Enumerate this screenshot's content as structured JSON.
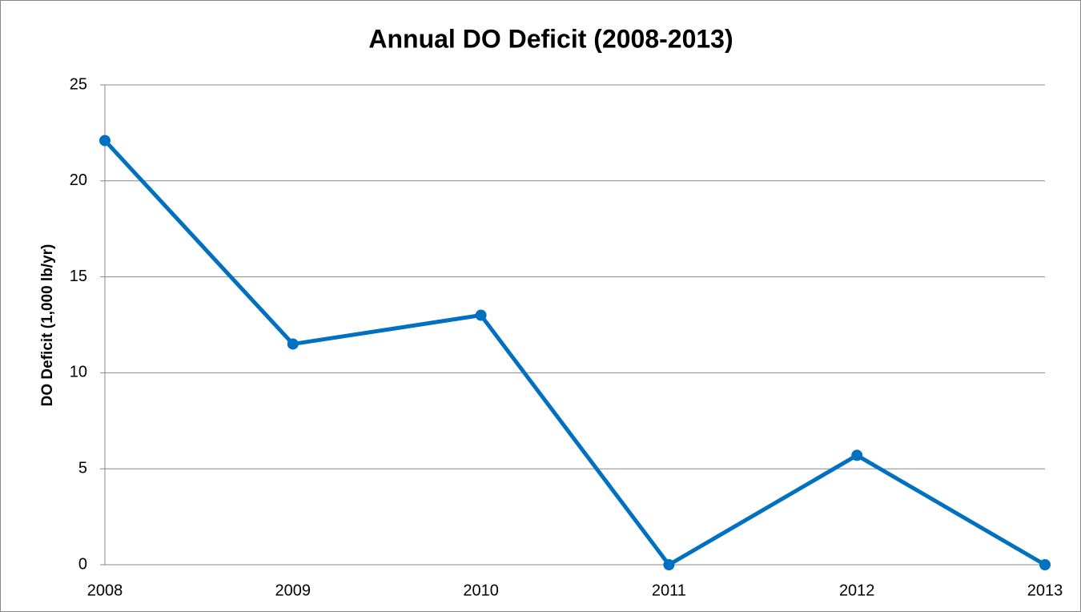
{
  "chart_data": {
    "type": "line",
    "title": "Annual DO Deficit (2008-2013)",
    "y_label": "DO Deficit (1,000 lb/yr)",
    "categories": [
      "2008",
      "2009",
      "2010",
      "2011",
      "2012",
      "2013"
    ],
    "series": [
      {
        "name": "DO Deficit",
        "color": "#0070c0",
        "values": [
          22.1,
          11.5,
          13,
          0,
          5.7,
          0
        ]
      }
    ],
    "ylim": [
      0,
      25
    ],
    "yticks": [
      0,
      5,
      10,
      15,
      20,
      25
    ],
    "grid": true
  }
}
